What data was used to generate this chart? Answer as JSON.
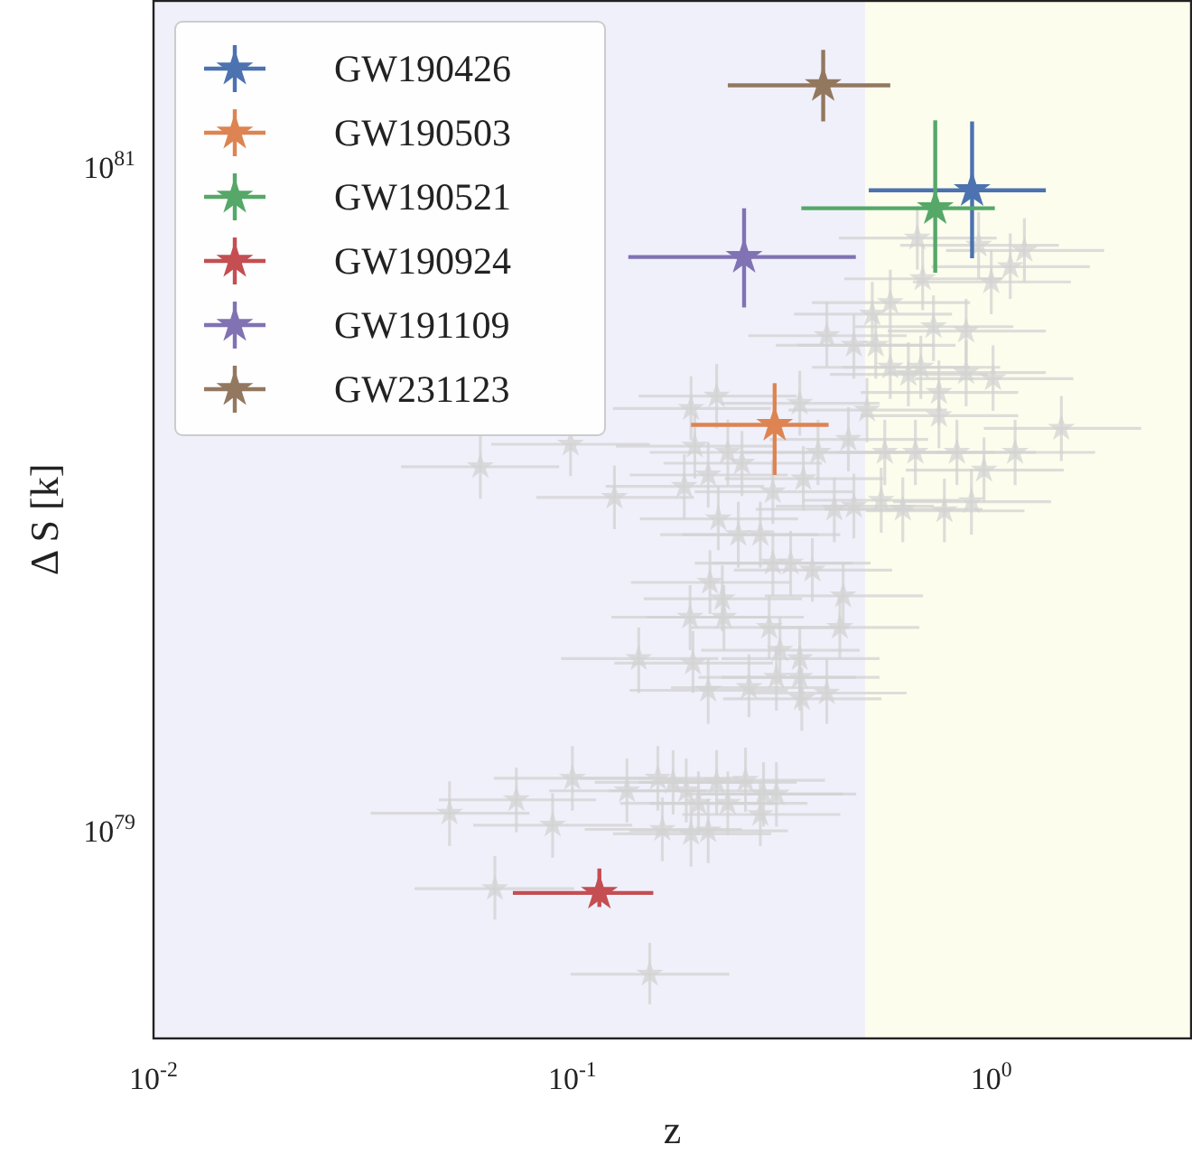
{
  "chart_data": {
    "type": "scatter",
    "xlabel": "z",
    "ylabel": "Δ S [k]",
    "log": "xy",
    "xlim": [
      0.01,
      3
    ],
    "ylim": [
      2.37e+78,
      3.16e+81
    ],
    "xticks": [
      {
        "value": 0.01,
        "label": "10$^{-2}$"
      },
      {
        "value": 0.1,
        "label": "10$^{-1}$"
      },
      {
        "value": 1,
        "label": "10$^{0}$"
      }
    ],
    "yticks": [
      {
        "value": 1e+79,
        "label": "10$^{79}$"
      },
      {
        "value": 1e+81,
        "label": "10$^{81}$"
      }
    ],
    "bands": [
      {
        "axis": "x",
        "from": 0.01,
        "to": 0.5,
        "color": "#f0f0fb"
      },
      {
        "axis": "x",
        "from": 0.5,
        "to": 3,
        "color": "#fdfdee"
      }
    ],
    "legend": "top left",
    "marker": "star",
    "series": [
      {
        "color": "#d3d3d3",
        "x": [
          0.0603,
          0.099,
          0.126,
          0.192,
          0.221,
          0.196,
          0.235,
          0.254,
          0.185,
          0.211,
          0.223,
          0.249,
          0.281,
          0.301,
          0.213,
          0.228,
          0.191,
          0.23,
          0.144,
          0.194,
          0.211,
          0.295,
          0.313,
          0.307,
          0.349,
          0.264,
          0.353,
          0.301,
          0.332,
          0.374,
          0.666,
          0.933,
          1.2,
          1.11,
          1.0,
          0.686,
          0.405,
          0.47,
          0.53,
          0.574,
          0.52,
          0.871,
          0.728,
          0.871,
          1.01,
          1.47,
          1.14,
          0.961,
          0.897,
          0.773,
          0.615,
          0.546,
          0.47,
          0.422,
          0.349,
          0.505,
          0.557,
          0.659,
          0.75,
          0.634,
          0.574,
          0.75,
          0.828,
          0.456,
          0.386,
          0.356,
          0.443,
          0.435,
          0.349,
          0.405,
          0.1,
          0.0735,
          0.0509,
          0.0897,
          0.135,
          0.16,
          0.174,
          0.187,
          0.221,
          0.259,
          0.286,
          0.307,
          0.2,
          0.235,
          0.281,
          0.164,
          0.192,
          0.211,
          0.0653,
          0.153,
          0.679
        ],
        "values": [
          1.25e+80,
          1.46e+80,
          1.01e+80,
          1.87e+80,
          2.04e+80,
          1.44e+80,
          1.38e+80,
          1.28e+80,
          1.09e+80,
          1.18e+80,
          8.7e+79,
          7.8e+79,
          7.8e+79,
          1.05e+80,
          5.6e+79,
          5e+79,
          4.4e+79,
          4.4e+79,
          3.3e+79,
          3.2e+79,
          2.65e+79,
          4.1e+79,
          3.5e+79,
          2.9e+79,
          3.3e+79,
          2.7e+79,
          2.5e+79,
          6.4e+79,
          6.4e+79,
          6.1e+79,
          6.1e+80,
          5.8e+80,
          5.6e+80,
          5e+80,
          4.5e+80,
          4.6e+80,
          3.1e+80,
          2.9e+80,
          2.9e+80,
          3.9e+80,
          3.6e+80,
          3.2e+80,
          3.3e+80,
          2.4e+80,
          2.3e+80,
          1.63e+80,
          1.38e+80,
          1.22e+80,
          9.8e+79,
          9.2e+79,
          9.3e+79,
          9.9e+79,
          9.5e+79,
          9.3e+79,
          1.94e+80,
          1.85e+80,
          1.38e+80,
          1.38e+80,
          1.78e+80,
          2.37e+80,
          2.49e+80,
          2.09e+80,
          1.38e+80,
          1.51e+80,
          1.38e+80,
          1.15e+80,
          5.1e+79,
          4.1e+79,
          2.9e+79,
          2.6e+79,
          1.44e+79,
          1.24e+79,
          1.13e+79,
          1.04e+79,
          1.32e+79,
          1.44e+79,
          1.4e+79,
          1.32e+79,
          1.4e+79,
          1.42e+79,
          1.29e+79,
          1.29e+79,
          1.21e+79,
          1.21e+79,
          1.12e+79,
          1.01e+79,
          9.8e+78,
          1e+79,
          6.7e+78,
          3.7e+78,
          2.49e+80
        ],
        "xerrors": [
          [
            0.039,
            0.093
          ],
          [
            0.064,
            0.153
          ],
          [
            0.082,
            0.195
          ],
          [
            0.125,
            0.298
          ],
          [
            0.144,
            0.343
          ],
          [
            0.127,
            0.304
          ],
          [
            0.153,
            0.364
          ],
          [
            0.165,
            0.394
          ],
          [
            0.12,
            0.287
          ],
          [
            0.137,
            0.327
          ],
          [
            0.145,
            0.346
          ],
          [
            0.162,
            0.386
          ],
          [
            0.183,
            0.436
          ],
          [
            0.196,
            0.467
          ],
          [
            0.138,
            0.33
          ],
          [
            0.148,
            0.353
          ],
          [
            0.124,
            0.296
          ],
          [
            0.15,
            0.357
          ],
          [
            0.094,
            0.223
          ],
          [
            0.126,
            0.301
          ],
          [
            0.137,
            0.327
          ],
          [
            0.192,
            0.457
          ],
          [
            0.203,
            0.485
          ],
          [
            0.2,
            0.476
          ],
          [
            0.227,
            0.541
          ],
          [
            0.172,
            0.409
          ],
          [
            0.229,
            0.547
          ],
          [
            0.196,
            0.467
          ],
          [
            0.216,
            0.515
          ],
          [
            0.243,
            0.58
          ],
          [
            0.433,
            1.03
          ],
          [
            0.606,
            1.45
          ],
          [
            0.78,
            1.86
          ],
          [
            0.72,
            1.72
          ],
          [
            0.65,
            1.55
          ],
          [
            0.446,
            1.06
          ],
          [
            0.263,
            0.628
          ],
          [
            0.306,
            0.729
          ],
          [
            0.345,
            0.822
          ],
          [
            0.373,
            0.89
          ],
          [
            0.338,
            0.806
          ],
          [
            0.566,
            1.35
          ],
          [
            0.473,
            1.13
          ],
          [
            0.566,
            1.35
          ],
          [
            0.657,
            1.57
          ],
          [
            0.96,
            2.28
          ],
          [
            0.74,
            1.77
          ],
          [
            0.625,
            1.49
          ],
          [
            0.583,
            1.39
          ],
          [
            0.502,
            1.2
          ],
          [
            0.4,
            0.953
          ],
          [
            0.355,
            0.846
          ],
          [
            0.306,
            0.729
          ],
          [
            0.274,
            0.654
          ],
          [
            0.227,
            0.541
          ],
          [
            0.328,
            0.783
          ],
          [
            0.362,
            0.863
          ],
          [
            0.428,
            1.02
          ],
          [
            0.488,
            1.16
          ],
          [
            0.412,
            0.983
          ],
          [
            0.373,
            0.89
          ],
          [
            0.488,
            1.16
          ],
          [
            0.538,
            1.28
          ],
          [
            0.296,
            0.707
          ],
          [
            0.251,
            0.598
          ],
          [
            0.231,
            0.552
          ],
          [
            0.288,
            0.687
          ],
          [
            0.283,
            0.674
          ],
          [
            0.227,
            0.541
          ],
          [
            0.263,
            0.628
          ],
          [
            0.065,
            0.155
          ],
          [
            0.048,
            0.114
          ],
          [
            0.033,
            0.079
          ],
          [
            0.058,
            0.139
          ],
          [
            0.088,
            0.209
          ],
          [
            0.104,
            0.248
          ],
          [
            0.113,
            0.27
          ],
          [
            0.122,
            0.29
          ],
          [
            0.144,
            0.343
          ],
          [
            0.168,
            0.401
          ],
          [
            0.186,
            0.443
          ],
          [
            0.2,
            0.476
          ],
          [
            0.13,
            0.31
          ],
          [
            0.153,
            0.364
          ],
          [
            0.183,
            0.436
          ],
          [
            0.107,
            0.254
          ],
          [
            0.125,
            0.298
          ],
          [
            0.137,
            0.327
          ],
          [
            0.042,
            0.101
          ],
          [
            0.099,
            0.237
          ],
          [
            0.441,
            1.05
          ]
        ],
        "errors": [
          [
            1e+80,
            1.56e+80
          ],
          [
            1.17e+80,
            1.46e+80
          ],
          [
            8.1e+79,
            1.26e+80
          ],
          [
            1.5e+80,
            2.34e+80
          ],
          [
            1.63e+80,
            2.55e+80
          ],
          [
            1.15e+80,
            1.8e+80
          ],
          [
            1.1e+80,
            1.73e+80
          ],
          [
            1.02e+80,
            1.6e+80
          ],
          [
            8.7e+79,
            1.36e+80
          ],
          [
            9.4e+79,
            1.48e+80
          ],
          [
            7e+79,
            1.09e+80
          ],
          [
            6.2e+79,
            9.8e+79
          ],
          [
            6.2e+79,
            9.8e+79
          ],
          [
            8.4e+79,
            1.31e+80
          ],
          [
            4.5e+79,
            7e+79
          ],
          [
            4e+79,
            6.3e+79
          ],
          [
            3.5e+79,
            5.5e+79
          ],
          [
            3.5e+79,
            5.5e+79
          ],
          [
            2.6e+79,
            4.1e+79
          ],
          [
            2.6e+79,
            4e+79
          ],
          [
            2.1e+79,
            3.3e+79
          ],
          [
            3.3e+79,
            5.1e+79
          ],
          [
            2.8e+79,
            4.4e+79
          ],
          [
            2.3e+79,
            3.6e+79
          ],
          [
            2.6e+79,
            4.1e+79
          ],
          [
            2.2e+79,
            3.4e+79
          ],
          [
            2e+79,
            3.1e+79
          ],
          [
            5.1e+79,
            8e+79
          ],
          [
            5.1e+79,
            8e+79
          ],
          [
            4.9e+79,
            7.6e+79
          ],
          [
            4.9e+80,
            7.6e+80
          ],
          [
            4.6e+80,
            7.3e+80
          ],
          [
            4.5e+80,
            7e+80
          ],
          [
            4e+80,
            6.3e+80
          ],
          [
            3.6e+80,
            5.6e+80
          ],
          [
            3.7e+80,
            5.8e+80
          ],
          [
            2.5e+80,
            3.9e+80
          ],
          [
            2.3e+80,
            3.6e+80
          ],
          [
            2.3e+80,
            3.6e+80
          ],
          [
            3.1e+80,
            4.9e+80
          ],
          [
            2.9e+80,
            4.5e+80
          ],
          [
            2.6e+80,
            4e+80
          ],
          [
            2.6e+80,
            4.1e+80
          ],
          [
            1.9e+80,
            3e+80
          ],
          [
            1.84e+80,
            2.9e+80
          ],
          [
            1.3e+80,
            2.04e+80
          ],
          [
            1.1e+80,
            1.73e+80
          ],
          [
            9.8e+79,
            1.53e+80
          ],
          [
            7.8e+79,
            1.23e+80
          ],
          [
            7.4e+79,
            1.15e+80
          ],
          [
            7.4e+79,
            1.16e+80
          ],
          [
            7.9e+79,
            1.24e+80
          ],
          [
            7.6e+79,
            1.19e+80
          ],
          [
            7.4e+79,
            1.16e+80
          ],
          [
            1.55e+80,
            2.43e+80
          ],
          [
            1.48e+80,
            2.31e+80
          ],
          [
            1.1e+80,
            1.73e+80
          ],
          [
            1.1e+80,
            1.73e+80
          ],
          [
            1.42e+80,
            2.23e+80
          ],
          [
            1.9e+80,
            2.96e+80
          ],
          [
            2e+80,
            3.1e+80
          ],
          [
            1.67e+80,
            2.61e+80
          ],
          [
            1.1e+80,
            1.73e+80
          ],
          [
            1.21e+80,
            1.89e+80
          ],
          [
            1.1e+80,
            1.73e+80
          ],
          [
            9.2e+79,
            1.44e+80
          ],
          [
            4.1e+79,
            6.4e+79
          ],
          [
            3.3e+79,
            5.1e+79
          ],
          [
            2.3e+79,
            3.6e+79
          ],
          [
            2.1e+79,
            3.3e+79
          ],
          [
            1.15e+79,
            1.8e+79
          ],
          [
            9.9e+78,
            1.55e+79
          ],
          [
            9e+78,
            1.41e+79
          ],
          [
            8.3e+78,
            1.3e+79
          ],
          [
            1.06e+79,
            1.65e+79
          ],
          [
            1.15e+79,
            1.8e+79
          ],
          [
            1.12e+79,
            1.75e+79
          ],
          [
            1.06e+79,
            1.65e+79
          ],
          [
            1.12e+79,
            1.75e+79
          ],
          [
            1.14e+79,
            1.78e+79
          ],
          [
            1.03e+79,
            1.61e+79
          ],
          [
            1.03e+79,
            1.61e+79
          ],
          [
            9.7e+78,
            1.51e+79
          ],
          [
            9.7e+78,
            1.51e+79
          ],
          [
            9e+78,
            1.4e+79
          ],
          [
            8.1e+78,
            1.26e+79
          ],
          [
            7.8e+78,
            1.23e+79
          ],
          [
            8e+78,
            1.25e+79
          ],
          [
            5.4e+78,
            8.4e+78
          ],
          [
            3e+78,
            4.6e+78
          ],
          [
            2e+80,
            3.1e+80
          ]
        ]
      },
      {
        "name": "GW190426",
        "color": "#4c72b0",
        "x": [
          0.9
        ],
        "values": [
          8.5e+80
        ],
        "xerrors": [
          [
            0.51,
            1.35
          ]
        ],
        "errors": [
          [
            5.3e+80,
            1.37e+81
          ]
        ]
      },
      {
        "name": "GW190503",
        "color": "#dd8452",
        "x": [
          0.304
        ],
        "values": [
          1.67e+80
        ],
        "xerrors": [
          [
            0.192,
            0.409
          ]
        ],
        "errors": [
          [
            1.18e+80,
            2.23e+80
          ]
        ]
      },
      {
        "name": "GW190521",
        "color": "#55a868",
        "x": [
          0.735
        ],
        "values": [
          7.5e+80
        ],
        "xerrors": [
          [
            0.352,
            1.02
          ]
        ],
        "errors": [
          [
            4.8e+80,
            1.38e+81
          ]
        ]
      },
      {
        "name": "GW190924",
        "color": "#c44e52",
        "x": [
          0.116
        ],
        "values": [
          6.5e+78
        ],
        "xerrors": [
          [
            0.0721,
            0.156
          ]
        ],
        "errors": [
          [
            5.9e+78,
            7.7e+78
          ]
        ]
      },
      {
        "name": "GW191109",
        "color": "#8172b3",
        "x": [
          0.257
        ],
        "values": [
          5.35e+80
        ],
        "xerrors": [
          [
            0.136,
            0.475
          ]
        ],
        "errors": [
          [
            3.77e+80,
            7.5e+80
          ]
        ]
      },
      {
        "name": "GW231123",
        "color": "#937860",
        "x": [
          0.397
        ],
        "values": [
          1.76e+81
        ],
        "xerrors": [
          [
            0.235,
            0.574
          ]
        ],
        "errors": [
          [
            1.37e+81,
            2.25e+81
          ]
        ]
      }
    ]
  }
}
